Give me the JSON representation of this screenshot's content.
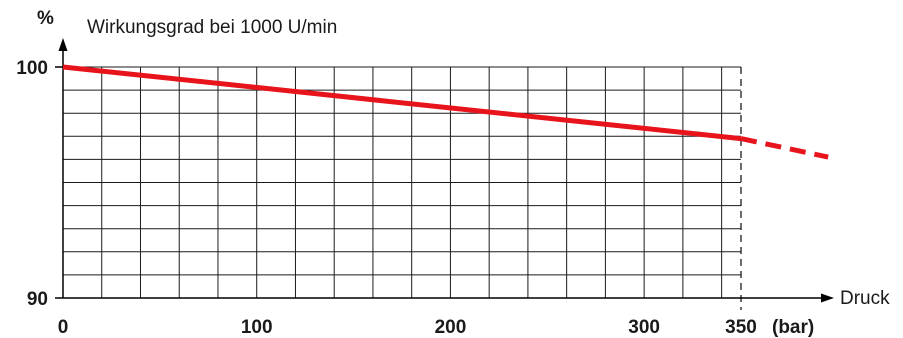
{
  "chart_data": {
    "type": "line",
    "title": "Wirkungsgrad bei 1000 U/min",
    "ylabel": "%",
    "xlabel": "Druck",
    "xunit": "(bar)",
    "xlim": [
      0,
      350
    ],
    "ylim": [
      90,
      100
    ],
    "x_ticks": [
      0,
      100,
      200,
      300,
      350
    ],
    "y_ticks": [
      90,
      100
    ],
    "grid": true,
    "grid_x_step": 20,
    "grid_y_step": 1,
    "series": [
      {
        "color": "#e8141c",
        "style": "solid",
        "points": [
          [
            0,
            100.0
          ],
          [
            350,
            96.9
          ]
        ]
      },
      {
        "color": "#e8141c",
        "style": "dashed",
        "points": [
          [
            350,
            96.9
          ],
          [
            395,
            96.1
          ]
        ]
      }
    ]
  }
}
